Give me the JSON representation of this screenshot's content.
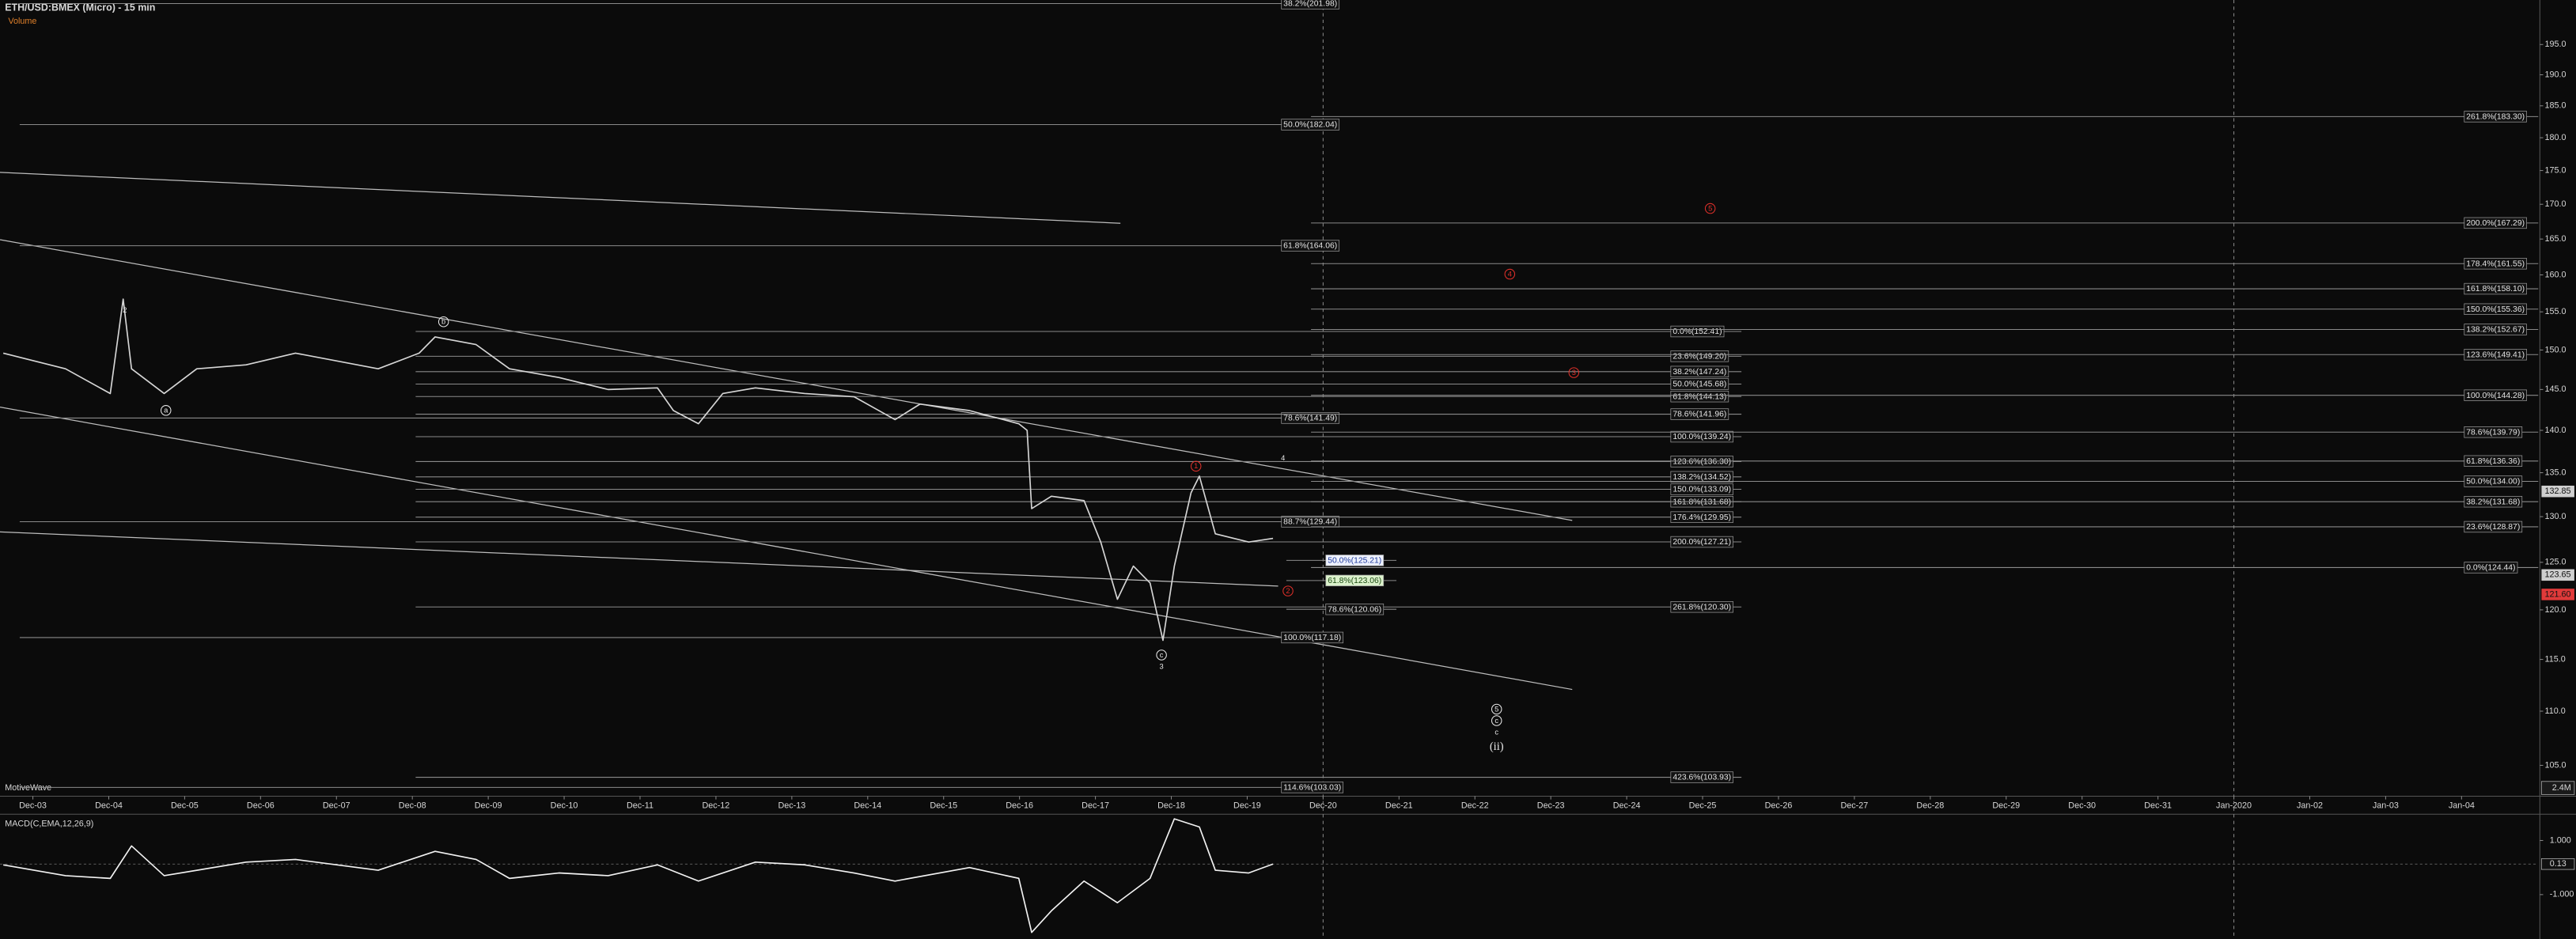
{
  "chart_data": [
    {
      "type": "line",
      "title": "ETH/USD:BMEX (Micro) - 15 min",
      "volume_label": "Volume",
      "watermark": "MotiveWave",
      "volume_axis_label": "2.4M",
      "log_scale": true,
      "color": "#d6d6d6",
      "x": [
        -0.39,
        0.43,
        1.02,
        1.19,
        1.3,
        1.73,
        2.16,
        2.81,
        3.46,
        4.55,
        5.09,
        5.3,
        5.84,
        6.28,
        6.93,
        7.58,
        8.23,
        8.44,
        8.77,
        9.09,
        9.52,
        10.17,
        10.82,
        11.36,
        11.69,
        12.34,
        12.99,
        13.1,
        13.16,
        13.42,
        13.85,
        14.07,
        14.29,
        14.5,
        14.72,
        14.89,
        15.04,
        15.26,
        15.37,
        15.58,
        16.02,
        16.34
      ],
      "values": [
        149.6,
        147.6,
        144.5,
        156.7,
        147.6,
        144.5,
        147.6,
        148.1,
        149.6,
        147.6,
        149.6,
        151.7,
        150.7,
        147.6,
        146.5,
        145.0,
        145.2,
        142.4,
        140.8,
        144.5,
        145.2,
        144.5,
        144.1,
        141.3,
        143.2,
        142.4,
        140.8,
        140.0,
        130.9,
        132.3,
        131.8,
        127.2,
        121.1,
        124.6,
        122.8,
        116.9,
        124.6,
        132.7,
        134.6,
        128.1,
        127.2,
        127.6
      ],
      "xlim": [
        -0.433,
        33.01
      ],
      "xticks": [
        {
          "value": 0,
          "label": "Dec-03"
        },
        {
          "value": 1,
          "label": "Dec-04"
        },
        {
          "value": 2,
          "label": "Dec-05"
        },
        {
          "value": 3,
          "label": "Dec-06"
        },
        {
          "value": 4,
          "label": "Dec-07"
        },
        {
          "value": 5,
          "label": "Dec-08"
        },
        {
          "value": 6,
          "label": "Dec-09"
        },
        {
          "value": 7,
          "label": "Dec-10"
        },
        {
          "value": 8,
          "label": "Dec-11"
        },
        {
          "value": 9,
          "label": "Dec-12"
        },
        {
          "value": 10,
          "label": "Dec-13"
        },
        {
          "value": 11,
          "label": "Dec-14"
        },
        {
          "value": 12,
          "label": "Dec-15"
        },
        {
          "value": 13,
          "label": "Dec-16"
        },
        {
          "value": 14,
          "label": "Dec-17"
        },
        {
          "value": 15,
          "label": "Dec-18"
        },
        {
          "value": 16,
          "label": "Dec-19"
        },
        {
          "value": 17,
          "label": "Dec-20"
        },
        {
          "value": 18,
          "label": "Dec-21"
        },
        {
          "value": 19,
          "label": "Dec-22"
        },
        {
          "value": 20,
          "label": "Dec-23"
        },
        {
          "value": 21,
          "label": "Dec-24"
        },
        {
          "value": 22,
          "label": "Dec-25"
        },
        {
          "value": 23,
          "label": "Dec-26"
        },
        {
          "value": 24,
          "label": "Dec-27"
        },
        {
          "value": 25,
          "label": "Dec-28"
        },
        {
          "value": 26,
          "label": "Dec-29"
        },
        {
          "value": 27,
          "label": "Dec-30"
        },
        {
          "value": 28,
          "label": "Dec-31"
        },
        {
          "value": 29,
          "label": "Jan-2020"
        },
        {
          "value": 30,
          "label": "Jan-02"
        },
        {
          "value": 31,
          "label": "Jan-03"
        },
        {
          "value": 32,
          "label": "Jan-04"
        }
      ],
      "ylim": [
        102.4,
        202.6
      ],
      "yticks": [
        {
          "value": 105,
          "label": "105.0"
        },
        {
          "value": 110,
          "label": "110.0"
        },
        {
          "value": 115,
          "label": "115.0"
        },
        {
          "value": 120,
          "label": "120.0"
        },
        {
          "value": 125,
          "label": "125.0"
        },
        {
          "value": 130,
          "label": "130.0"
        },
        {
          "value": 135,
          "label": "135.0"
        },
        {
          "value": 140,
          "label": "140.0"
        },
        {
          "value": 145,
          "label": "145.0"
        },
        {
          "value": 150,
          "label": "150.0"
        },
        {
          "value": 155,
          "label": "155.0"
        },
        {
          "value": 160,
          "label": "160.0"
        },
        {
          "value": 165,
          "label": "165.0"
        },
        {
          "value": 170,
          "label": "170.0"
        },
        {
          "value": 175,
          "label": "175.0"
        },
        {
          "value": 180,
          "label": "180.0"
        },
        {
          "value": 185,
          "label": "185.0"
        },
        {
          "value": 190,
          "label": "190.0"
        },
        {
          "value": 195,
          "label": "195.0"
        }
      ],
      "price_tags": [
        {
          "value": 132.85,
          "label": "132.85",
          "color": "#cfcfcf"
        },
        {
          "value": 123.65,
          "label": "123.65",
          "color": "#cfcfcf"
        },
        {
          "value": 121.6,
          "label": "121.60",
          "color": "#e03a3a"
        }
      ],
      "fib_groups": [
        {
          "levels": [
            {
              "label": "38.2%(201.98)",
              "value": 201.98
            },
            {
              "label": "50.0%(182.04)",
              "value": 182.04
            },
            {
              "label": "61.8%(164.06)",
              "value": 164.06
            },
            {
              "label": "78.6%(141.49)",
              "value": 141.49
            },
            {
              "label": "88.7%(129.44)",
              "value": 129.44
            },
            {
              "label": "100.0%(117.18)",
              "value": 117.18
            },
            {
              "label": "114.6%(103.03)",
              "value": 103.03
            }
          ]
        },
        {
          "levels": [
            {
              "label": "0.0%(152.41)",
              "value": 152.41
            },
            {
              "label": "23.6%(149.20)",
              "value": 149.2
            },
            {
              "label": "38.2%(147.24)",
              "value": 147.24
            },
            {
              "label": "50.0%(145.68)",
              "value": 145.68
            },
            {
              "label": "61.8%(144.13)",
              "value": 144.13
            },
            {
              "label": "78.6%(141.96)",
              "value": 141.96
            },
            {
              "label": "100.0%(139.24)",
              "value": 139.24
            },
            {
              "label": "123.6%(136.30)",
              "value": 136.3
            },
            {
              "label": "138.2%(134.52)",
              "value": 134.52
            },
            {
              "label": "150.0%(133.09)",
              "value": 133.09
            },
            {
              "label": "161.8%(131.68)",
              "value": 131.68
            },
            {
              "label": "176.4%(129.95)",
              "value": 129.95
            },
            {
              "label": "200.0%(127.21)",
              "value": 127.21
            },
            {
              "label": "261.8%(120.30)",
              "value": 120.3
            },
            {
              "label": "423.6%(103.93)",
              "value": 103.93
            }
          ]
        },
        {
          "levels": [
            {
              "label": "261.8%(183.30)",
              "value": 183.3
            },
            {
              "label": "200.0%(167.29)",
              "value": 167.29
            },
            {
              "label": "178.4%(161.55)",
              "value": 161.55
            },
            {
              "label": "161.8%(158.10)",
              "value": 158.1
            },
            {
              "label": "150.0%(155.36)",
              "value": 155.36
            },
            {
              "label": "138.2%(152.67)",
              "value": 152.67
            },
            {
              "label": "123.6%(149.41)",
              "value": 149.41
            },
            {
              "label": "100.0%(144.28)",
              "value": 144.28
            },
            {
              "label": "78.6%(139.79)",
              "value": 139.79
            },
            {
              "label": "61.8%(136.36)",
              "value": 136.36
            },
            {
              "label": "50.0%(134.00)",
              "value": 134.0
            },
            {
              "label": "38.2%(131.68)",
              "value": 131.68
            },
            {
              "label": "23.6%(128.87)",
              "value": 128.87
            },
            {
              "label": "0.0%(124.44)",
              "value": 124.44
            }
          ]
        },
        {
          "levels": [
            {
              "label": "50.0%(125.21)",
              "value": 125.21,
              "box_color": "#eef2ff",
              "text_color": "#1f3a9a"
            },
            {
              "label": "61.8%(123.06)",
              "value": 123.06,
              "box_color": "#dcf2cc",
              "text_color": "#1a4a10"
            },
            {
              "label": "78.6%(120.06)",
              "value": 120.06
            }
          ]
        }
      ],
      "wave_labels": [
        {
          "text": "2",
          "color": "#e8e8e8",
          "circle": false
        },
        {
          "text": "a",
          "color": "#e8e8e8",
          "circle": true
        },
        {
          "text": "b",
          "color": "#e8e8e8",
          "circle": true
        },
        {
          "text": "4",
          "color": "#e8e8e8",
          "circle": false
        },
        {
          "text": "1",
          "color": "#e0302a",
          "circle": true
        },
        {
          "text": "2",
          "color": "#e0302a",
          "circle": true
        },
        {
          "text": "c",
          "color": "#e8e8e8",
          "circle": true
        },
        {
          "text": "3",
          "color": "#e8e8e8",
          "circle": false
        },
        {
          "text": "3",
          "color": "#e0302a",
          "circle": true
        },
        {
          "text": "4",
          "color": "#e0302a",
          "circle": true
        },
        {
          "text": "5",
          "color": "#e0302a",
          "circle": true
        },
        {
          "text": "5",
          "color": "#e8e8e8",
          "circle": true
        },
        {
          "text": "c",
          "color": "#e8e8e8",
          "circle": true
        },
        {
          "text": "c",
          "color": "#e8e8e8",
          "circle": false
        },
        {
          "text": "(ii)",
          "color": "#e8e8e8",
          "circle": false
        }
      ]
    },
    {
      "type": "line",
      "title": "MACD(C,EMA,12,26,9)",
      "color": "#f2f2f2",
      "x": [
        -0.39,
        0.43,
        1.02,
        1.3,
        1.73,
        2.81,
        3.46,
        4.55,
        5.3,
        5.84,
        6.28,
        6.93,
        7.58,
        8.23,
        8.77,
        9.52,
        10.17,
        10.82,
        11.36,
        12.34,
        12.99,
        13.16,
        13.42,
        13.85,
        14.29,
        14.72,
        15.04,
        15.37,
        15.58,
        16.02,
        16.34
      ],
      "values": [
        0.1,
        -0.3,
        -0.4,
        0.8,
        -0.3,
        0.2,
        0.3,
        -0.1,
        0.6,
        0.3,
        -0.4,
        -0.2,
        -0.3,
        0.1,
        -0.5,
        0.2,
        0.1,
        -0.2,
        -0.5,
        0.0,
        -0.4,
        -2.4,
        -1.6,
        -0.5,
        -1.3,
        -0.4,
        1.8,
        1.5,
        -0.1,
        -0.2,
        0.13
      ],
      "ylim": [
        -2.52,
        1.91
      ],
      "yticks": [
        {
          "value": 1,
          "label": "1.000"
        },
        {
          "value": -1,
          "label": "-1.000"
        }
      ],
      "current_tag": 0.13
    }
  ]
}
